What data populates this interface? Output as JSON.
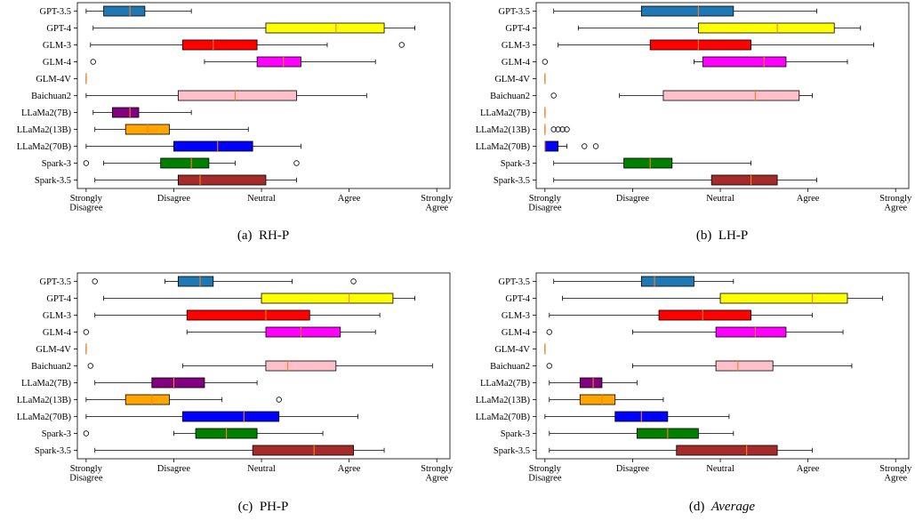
{
  "scale_labels": [
    [
      "Strongly",
      "Disagree"
    ],
    [
      "Disagree"
    ],
    [
      "Neutral"
    ],
    [
      "Agree"
    ],
    [
      "Strongly",
      "Agree"
    ]
  ],
  "models": [
    "GPT-3.5",
    "GPT-4",
    "GLM-3",
    "GLM-4",
    "GLM-4V",
    "Baichuan2",
    "LLaMa2(7B)",
    "LLaMa2(13B)",
    "LLaMa2(70B)",
    "Spark-3",
    "Spark-3.5"
  ],
  "colors": [
    "#1f77b4",
    "#ffff00",
    "#ff0000",
    "#ff00ff",
    "#ff8c00",
    "#ffc0cb",
    "#800080",
    "#ffa500",
    "#0000ff",
    "#008000",
    "#a52a2a"
  ],
  "median_color": "#ff7f0e",
  "chart_data": [
    {
      "type": "box",
      "caption_prefix": "(a)",
      "caption": "RH-P",
      "xlim": [
        0.9,
        5.15
      ],
      "xticks": [
        1,
        2,
        3,
        4,
        5
      ],
      "boxes": [
        {
          "model": "GPT-3.5",
          "whislo": 1.0,
          "q1": 1.2,
          "med": 1.5,
          "q3": 1.67,
          "whishi": 2.2,
          "fliers": []
        },
        {
          "model": "GPT-4",
          "whislo": 1.08,
          "q1": 3.05,
          "med": 3.85,
          "q3": 4.4,
          "whishi": 4.75,
          "fliers": []
        },
        {
          "model": "GLM-3",
          "whislo": 1.05,
          "q1": 2.1,
          "med": 2.45,
          "q3": 2.95,
          "whishi": 3.75,
          "fliers": [
            4.6
          ]
        },
        {
          "model": "GLM-4",
          "whislo": 2.35,
          "q1": 2.95,
          "med": 3.25,
          "q3": 3.45,
          "whishi": 4.3,
          "fliers": [
            1.08
          ]
        },
        {
          "model": "GLM-4V",
          "whislo": 1.0,
          "q1": 1.0,
          "med": 1.0,
          "q3": 1.0,
          "whishi": 1.0,
          "fliers": []
        },
        {
          "model": "Baichuan2",
          "whislo": 1.0,
          "q1": 2.05,
          "med": 2.7,
          "q3": 3.4,
          "whishi": 4.2,
          "fliers": []
        },
        {
          "model": "LLaMa2(7B)",
          "whislo": 1.08,
          "q1": 1.3,
          "med": 1.5,
          "q3": 1.6,
          "whishi": 2.2,
          "fliers": []
        },
        {
          "model": "LLaMa2(13B)",
          "whislo": 1.1,
          "q1": 1.45,
          "med": 1.7,
          "q3": 1.95,
          "whishi": 2.85,
          "fliers": []
        },
        {
          "model": "LLaMa2(70B)",
          "whislo": 1.0,
          "q1": 2.0,
          "med": 2.5,
          "q3": 2.9,
          "whishi": 3.45,
          "fliers": []
        },
        {
          "model": "Spark-3",
          "whislo": 1.2,
          "q1": 1.85,
          "med": 2.2,
          "q3": 2.4,
          "whishi": 2.7,
          "fliers": [
            1.0,
            3.4
          ]
        },
        {
          "model": "Spark-3.5",
          "whislo": 1.1,
          "q1": 2.05,
          "med": 2.3,
          "q3": 3.05,
          "whishi": 3.4,
          "fliers": []
        }
      ]
    },
    {
      "type": "box",
      "caption_prefix": "(b)",
      "caption": "LH-P",
      "xlim": [
        0.9,
        5.15
      ],
      "xticks": [
        1,
        2,
        3,
        4,
        5
      ],
      "boxes": [
        {
          "model": "GPT-3.5",
          "whislo": 1.1,
          "q1": 2.1,
          "med": 2.75,
          "q3": 3.15,
          "whishi": 4.1,
          "fliers": []
        },
        {
          "model": "GPT-4",
          "whislo": 1.38,
          "q1": 2.75,
          "med": 3.65,
          "q3": 4.3,
          "whishi": 4.6,
          "fliers": []
        },
        {
          "model": "GLM-3",
          "whislo": 1.15,
          "q1": 2.2,
          "med": 2.75,
          "q3": 3.35,
          "whishi": 4.75,
          "fliers": []
        },
        {
          "model": "GLM-4",
          "whislo": 2.7,
          "q1": 2.8,
          "med": 3.5,
          "q3": 3.75,
          "whishi": 4.45,
          "fliers": [
            1.0
          ]
        },
        {
          "model": "GLM-4V",
          "whislo": 1.0,
          "q1": 1.0,
          "med": 1.0,
          "q3": 1.0,
          "whishi": 1.0,
          "fliers": []
        },
        {
          "model": "Baichuan2",
          "whislo": 1.85,
          "q1": 2.35,
          "med": 3.4,
          "q3": 3.9,
          "whishi": 4.05,
          "fliers": [
            1.1
          ]
        },
        {
          "model": "LLaMa2(7B)",
          "whislo": 1.0,
          "q1": 1.0,
          "med": 1.0,
          "q3": 1.0,
          "whishi": 1.0,
          "fliers": []
        },
        {
          "model": "LLaMa2(13B)",
          "whislo": 1.0,
          "q1": 1.0,
          "med": 1.0,
          "q3": 1.0,
          "whishi": 1.0,
          "fliers": [
            1.1,
            1.15,
            1.2,
            1.25
          ]
        },
        {
          "model": "LLaMa2(70B)",
          "whislo": 1.0,
          "q1": 1.0,
          "med": 1.0,
          "q3": 1.15,
          "whishi": 1.25,
          "fliers": [
            1.45,
            1.58
          ]
        },
        {
          "model": "Spark-3",
          "whislo": 1.1,
          "q1": 1.9,
          "med": 2.2,
          "q3": 2.45,
          "whishi": 3.35,
          "fliers": []
        },
        {
          "model": "Spark-3.5",
          "whislo": 1.1,
          "q1": 2.9,
          "med": 3.35,
          "q3": 3.65,
          "whishi": 4.1,
          "fliers": []
        }
      ]
    },
    {
      "type": "box",
      "caption_prefix": "(c)",
      "caption": "PH-P",
      "xlim": [
        0.9,
        5.15
      ],
      "xticks": [
        1,
        2,
        3,
        4,
        5
      ],
      "boxes": [
        {
          "model": "GPT-3.5",
          "whislo": 1.9,
          "q1": 2.05,
          "med": 2.3,
          "q3": 2.45,
          "whishi": 3.35,
          "fliers": [
            1.1,
            4.05
          ]
        },
        {
          "model": "GPT-4",
          "whislo": 1.2,
          "q1": 3.0,
          "med": 4.0,
          "q3": 4.5,
          "whishi": 4.75,
          "fliers": []
        },
        {
          "model": "GLM-3",
          "whislo": 1.1,
          "q1": 2.15,
          "med": 3.05,
          "q3": 3.55,
          "whishi": 4.35,
          "fliers": []
        },
        {
          "model": "GLM-4",
          "whislo": 2.15,
          "q1": 3.05,
          "med": 3.45,
          "q3": 3.9,
          "whishi": 4.3,
          "fliers": [
            1.0
          ]
        },
        {
          "model": "GLM-4V",
          "whislo": 1.0,
          "q1": 1.0,
          "med": 1.0,
          "q3": 1.0,
          "whishi": 1.0,
          "fliers": []
        },
        {
          "model": "Baichuan2",
          "whislo": 2.1,
          "q1": 3.05,
          "med": 3.3,
          "q3": 3.85,
          "whishi": 4.95,
          "fliers": [
            1.05
          ]
        },
        {
          "model": "LLaMa2(7B)",
          "whislo": 1.1,
          "q1": 1.75,
          "med": 2.0,
          "q3": 2.35,
          "whishi": 2.95,
          "fliers": []
        },
        {
          "model": "LLaMa2(13B)",
          "whislo": 1.0,
          "q1": 1.45,
          "med": 1.75,
          "q3": 1.95,
          "whishi": 2.55,
          "fliers": [
            3.2
          ]
        },
        {
          "model": "LLaMa2(70B)",
          "whislo": 1.0,
          "q1": 2.1,
          "med": 2.8,
          "q3": 3.2,
          "whishi": 4.1,
          "fliers": []
        },
        {
          "model": "Spark-3",
          "whislo": 2.0,
          "q1": 2.25,
          "med": 2.6,
          "q3": 2.95,
          "whishi": 3.7,
          "fliers": [
            1.0
          ]
        },
        {
          "model": "Spark-3.5",
          "whislo": 1.1,
          "q1": 2.9,
          "med": 3.6,
          "q3": 4.05,
          "whishi": 4.4,
          "fliers": []
        }
      ]
    },
    {
      "type": "box",
      "caption_prefix": "(d)",
      "caption": "Average",
      "caption_italic": true,
      "xlim": [
        0.9,
        5.15
      ],
      "xticks": [
        1,
        2,
        3,
        4,
        5
      ],
      "boxes": [
        {
          "model": "GPT-3.5",
          "whislo": 1.1,
          "q1": 2.1,
          "med": 2.25,
          "q3": 2.7,
          "whishi": 3.15,
          "fliers": []
        },
        {
          "model": "GPT-4",
          "whislo": 1.2,
          "q1": 3.0,
          "med": 4.05,
          "q3": 4.45,
          "whishi": 4.85,
          "fliers": []
        },
        {
          "model": "GLM-3",
          "whislo": 1.05,
          "q1": 2.3,
          "med": 2.8,
          "q3": 3.35,
          "whishi": 4.05,
          "fliers": []
        },
        {
          "model": "GLM-4",
          "whislo": 2.0,
          "q1": 2.95,
          "med": 3.4,
          "q3": 3.75,
          "whishi": 4.4,
          "fliers": [
            1.05
          ]
        },
        {
          "model": "GLM-4V",
          "whislo": 1.0,
          "q1": 1.0,
          "med": 1.0,
          "q3": 1.0,
          "whishi": 1.0,
          "fliers": []
        },
        {
          "model": "Baichuan2",
          "whislo": 2.0,
          "q1": 2.95,
          "med": 3.2,
          "q3": 3.6,
          "whishi": 4.5,
          "fliers": [
            1.05
          ]
        },
        {
          "model": "LLaMa2(7B)",
          "whislo": 1.05,
          "q1": 1.4,
          "med": 1.55,
          "q3": 1.65,
          "whishi": 2.05,
          "fliers": []
        },
        {
          "model": "LLaMa2(13B)",
          "whislo": 1.05,
          "q1": 1.4,
          "med": 1.65,
          "q3": 1.8,
          "whishi": 2.35,
          "fliers": []
        },
        {
          "model": "LLaMa2(70B)",
          "whislo": 1.0,
          "q1": 1.8,
          "med": 2.1,
          "q3": 2.4,
          "whishi": 3.1,
          "fliers": []
        },
        {
          "model": "Spark-3",
          "whislo": 1.05,
          "q1": 2.05,
          "med": 2.4,
          "q3": 2.75,
          "whishi": 3.15,
          "fliers": []
        },
        {
          "model": "Spark-3.5",
          "whislo": 1.05,
          "q1": 2.5,
          "med": 3.3,
          "q3": 3.65,
          "whishi": 4.05,
          "fliers": []
        }
      ]
    }
  ]
}
